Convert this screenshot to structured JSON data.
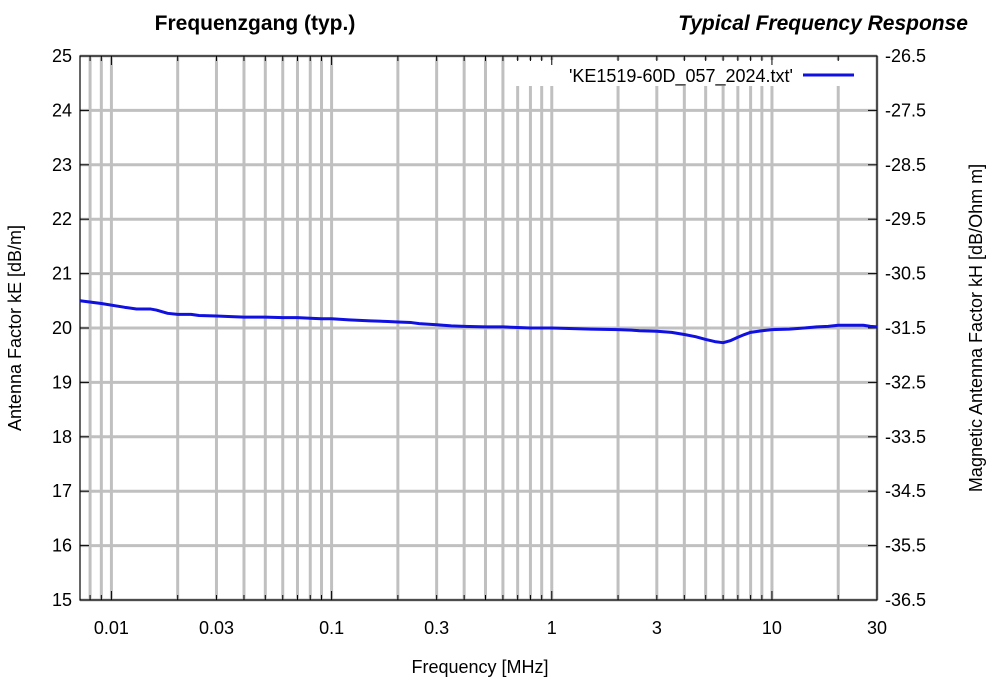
{
  "chart_data": {
    "type": "line",
    "title": "Frequenzgang (typ.)",
    "title_right": "Typical Frequency Response",
    "xlabel": "Frequency [MHz]",
    "ylabel": "Antenna Factor kE [dB/m]",
    "y2label": "Magnetic Antenna Factor kH [dB/Ohm m]",
    "xscale": "log",
    "xlim": [
      0.0072,
      30
    ],
    "ylim": [
      15,
      25
    ],
    "y2lim": [
      -36.5,
      -26.5
    ],
    "grid": true,
    "legend_position": "top-right",
    "x_ticks": [
      {
        "value": 0.01,
        "label": "0.01"
      },
      {
        "value": 0.03,
        "label": "0.03"
      },
      {
        "value": 0.1,
        "label": "0.1"
      },
      {
        "value": 0.3,
        "label": "0.3"
      },
      {
        "value": 1,
        "label": "1"
      },
      {
        "value": 3,
        "label": "3"
      },
      {
        "value": 10,
        "label": "10"
      },
      {
        "value": 30,
        "label": "30"
      }
    ],
    "y_ticks": [
      "15",
      "16",
      "17",
      "18",
      "19",
      "20",
      "21",
      "22",
      "23",
      "24",
      "25"
    ],
    "y2_ticks": [
      "-36.5",
      "-35.5",
      "-34.5",
      "-33.5",
      "-32.5",
      "-31.5",
      "-30.5",
      "-29.5",
      "-28.5",
      "-27.5",
      "-26.5"
    ],
    "series": [
      {
        "name": "'KE1519-60D_057_2024.txt'",
        "color": "#1010e0",
        "x": [
          0.0072,
          0.009,
          0.0115,
          0.013,
          0.015,
          0.016,
          0.018,
          0.02,
          0.023,
          0.025,
          0.03,
          0.035,
          0.04,
          0.05,
          0.06,
          0.07,
          0.08,
          0.09,
          0.1,
          0.12,
          0.15,
          0.18,
          0.2,
          0.23,
          0.25,
          0.3,
          0.35,
          0.4,
          0.5,
          0.6,
          0.7,
          0.8,
          1.0,
          1.2,
          1.5,
          2.0,
          2.3,
          2.5,
          3.0,
          3.5,
          4.0,
          4.5,
          5.0,
          5.5,
          6.0,
          6.5,
          7.0,
          7.5,
          8.0,
          9.0,
          10,
          12,
          14,
          16,
          18,
          20,
          24,
          26,
          28,
          30
        ],
        "y": [
          20.5,
          20.45,
          20.38,
          20.35,
          20.35,
          20.33,
          20.27,
          20.25,
          20.25,
          20.23,
          20.22,
          20.21,
          20.2,
          20.2,
          20.19,
          20.19,
          20.18,
          20.17,
          20.17,
          20.15,
          20.13,
          20.12,
          20.11,
          20.1,
          20.08,
          20.06,
          20.04,
          20.03,
          20.02,
          20.02,
          20.01,
          20.0,
          20.0,
          19.99,
          19.98,
          19.97,
          19.96,
          19.95,
          19.94,
          19.92,
          19.88,
          19.84,
          19.79,
          19.75,
          19.73,
          19.77,
          19.83,
          19.88,
          19.92,
          19.95,
          19.97,
          19.98,
          20.0,
          20.02,
          20.03,
          20.05,
          20.05,
          20.05,
          20.03,
          20.02
        ]
      }
    ]
  }
}
